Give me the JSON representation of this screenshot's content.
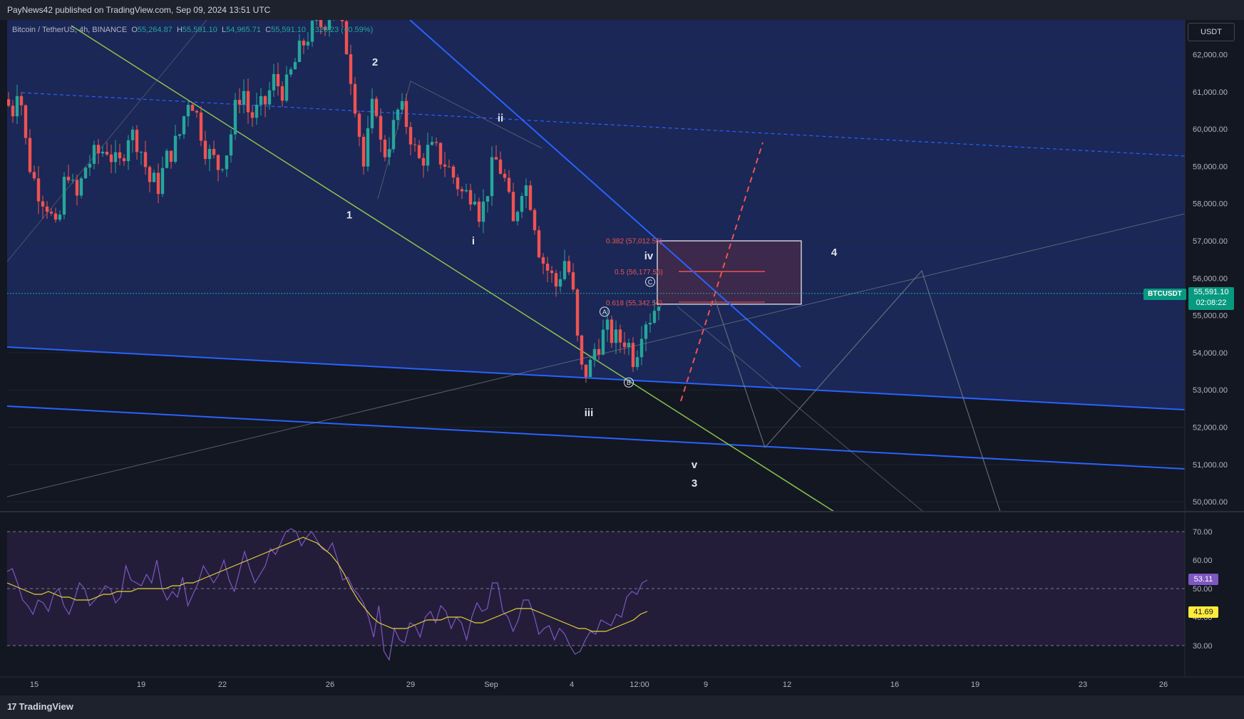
{
  "header": {
    "published": "PayNews42 published on TradingView.com, Sep 09, 2024 13:51 UTC"
  },
  "legend": {
    "symbol": "Bitcoin / TetherUS, 4h, BINANCE",
    "open_label": "O",
    "open": "55,264.87",
    "high_label": "H",
    "high": "55,591.10",
    "low_label": "L",
    "low": "54,965.71",
    "close_label": "C",
    "close": "55,591.10",
    "change": "+326.23 (+0.59%)"
  },
  "currency_button": "USDT",
  "symbol_tag": "BTCUSDT",
  "price_tag": {
    "price": "55,591.10",
    "countdown": "02:08:22"
  },
  "rsi_tags": {
    "rsi": "53.11",
    "ma": "41.69"
  },
  "footer": {
    "brand": "TradingView"
  },
  "colors": {
    "background": "#131722",
    "channel_fill": "#1a2757",
    "bull": "#26a69a",
    "bear": "#ef5350",
    "trendline": "#2962ff",
    "wedge": "#8bc34a",
    "rsi": "#7e57c2",
    "rsi_ma": "#e6d135",
    "rsi_bg": "#231d3a",
    "box_fill": "#3e2a4c"
  },
  "chart_data": [
    {
      "type": "candlestick",
      "title": "Bitcoin / TetherUS, 4h, BINANCE",
      "y_axis_ticks": [
        "62,000.00",
        "61,000.00",
        "60,000.00",
        "59,000.00",
        "58,000.00",
        "57,000.00",
        "56,000.00",
        "55,000.00",
        "54,000.00",
        "53,000.00",
        "52,000.00",
        "51,000.00",
        "50,000.00"
      ],
      "x_axis_ticks": [
        "15",
        "19",
        "22",
        "26",
        "29",
        "Sep",
        "4",
        "12:00",
        "9",
        "12",
        "16",
        "19",
        "23",
        "26"
      ],
      "ylim": [
        49800,
        62600
      ],
      "close_path": [
        [
          0,
          60800
        ],
        [
          3,
          60300
        ],
        [
          8,
          61400
        ],
        [
          14,
          59300
        ],
        [
          20,
          58500
        ],
        [
          28,
          58000
        ],
        [
          35,
          57100
        ],
        [
          42,
          59100
        ],
        [
          48,
          58000
        ],
        [
          55,
          59000
        ],
        [
          62,
          59300
        ],
        [
          70,
          59500
        ],
        [
          78,
          58900
        ],
        [
          85,
          59900
        ],
        [
          92,
          59700
        ],
        [
          100,
          58600
        ],
        [
          106,
          58500
        ],
        [
          113,
          59300
        ],
        [
          120,
          59700
        ],
        [
          128,
          61000
        ],
        [
          135,
          60100
        ],
        [
          140,
          59400
        ],
        [
          148,
          59000
        ],
        [
          155,
          59500
        ],
        [
          160,
          60500
        ],
        [
          165,
          61200
        ],
        [
          170,
          60300
        ],
        [
          180,
          60600
        ],
        [
          187,
          61300
        ],
        [
          195,
          61000
        ],
        [
          200,
          61600
        ],
        [
          210,
          62500
        ],
        [
          220,
          62800
        ],
        [
          230,
          63300
        ],
        [
          238,
          62200
        ],
        [
          245,
          60500
        ],
        [
          250,
          59000
        ],
        [
          258,
          61000
        ],
        [
          263,
          59200
        ],
        [
          270,
          59900
        ],
        [
          275,
          60600
        ],
        [
          282,
          60000
        ],
        [
          288,
          59100
        ],
        [
          295,
          59400
        ],
        [
          300,
          59400
        ],
        [
          307,
          59100
        ],
        [
          315,
          58600
        ],
        [
          320,
          58200
        ],
        [
          328,
          58400
        ],
        [
          332,
          57600
        ],
        [
          338,
          58600
        ],
        [
          342,
          59200
        ],
        [
          348,
          58800
        ],
        [
          355,
          57400
        ],
        [
          362,
          58700
        ],
        [
          368,
          58000
        ],
        [
          374,
          56600
        ],
        [
          378,
          56300
        ],
        [
          385,
          55800
        ],
        [
          392,
          56600
        ],
        [
          397,
          55500
        ],
        [
          402,
          53500
        ],
        [
          408,
          53500
        ],
        [
          412,
          54100
        ],
        [
          420,
          54600
        ],
        [
          428,
          54300
        ],
        [
          434,
          54400
        ],
        [
          440,
          53800
        ],
        [
          446,
          54900
        ],
        [
          452,
          55000
        ],
        [
          458,
          55591
        ]
      ],
      "labels": [
        {
          "text": "1",
          "x": 240,
          "y": 57600
        },
        {
          "text": "2",
          "x": 258,
          "y": 61700
        },
        {
          "text": "i",
          "x": 327,
          "y": 56900
        },
        {
          "text": "ii",
          "x": 346,
          "y": 60200
        },
        {
          "text": "iii",
          "x": 408,
          "y": 52300
        },
        {
          "text": "iv",
          "x": 450,
          "y": 56500
        },
        {
          "text": "v",
          "x": 482,
          "y": 50900
        },
        {
          "text": "3",
          "x": 482,
          "y": 50400
        },
        {
          "text": "4",
          "x": 580,
          "y": 56600
        }
      ],
      "wave_markers": [
        {
          "text": "A",
          "x": 419,
          "y": 55100
        },
        {
          "text": "B",
          "x": 436,
          "y": 53200
        },
        {
          "text": "C",
          "x": 451,
          "y": 55900
        }
      ],
      "fibonacci": [
        {
          "text": "0.382 (57,012.56)",
          "y": 57012.56
        },
        {
          "text": "0.5 (56,177.56)",
          "y": 56177.56
        },
        {
          "text": "0.618 (55,342.56)",
          "y": 55342.56
        }
      ],
      "target_box": {
        "y_top": 57000,
        "y_bottom": 55300
      }
    },
    {
      "type": "line",
      "title": "RSI",
      "y_axis_ticks": [
        "70.00",
        "60.00",
        "50.00",
        "40.00",
        "30.00"
      ],
      "ylim": [
        24,
        80
      ],
      "levels": [
        70,
        50,
        30
      ],
      "series": [
        {
          "values": [
            56,
            57,
            52,
            46,
            44,
            41,
            46,
            45,
            42,
            48,
            50,
            44,
            41,
            46,
            52,
            50,
            44,
            46,
            48,
            51,
            50,
            45,
            47,
            58,
            53,
            52,
            51,
            55,
            52,
            60,
            50,
            46,
            49,
            47,
            54,
            44,
            48,
            52,
            58,
            55,
            52,
            55,
            60,
            53,
            49,
            56,
            63,
            57,
            52,
            55,
            58,
            64,
            62,
            66,
            70,
            71,
            70,
            65,
            68,
            70,
            67,
            64,
            63,
            66,
            60,
            53,
            54,
            50,
            48,
            45,
            40,
            33,
            44,
            28,
            25,
            36,
            32,
            31,
            38,
            37,
            33,
            40,
            42,
            38,
            44,
            42,
            36,
            40,
            38,
            32,
            40,
            45,
            42,
            43,
            52,
            52,
            42,
            40,
            35,
            39,
            46,
            46,
            41,
            34,
            36,
            37,
            32,
            36,
            34,
            30,
            27,
            28,
            32,
            35,
            34,
            39,
            38,
            37,
            41,
            40,
            47,
            49,
            48,
            52,
            53
          ]
        },
        {
          "values": [
            52,
            51,
            50,
            49,
            48,
            48,
            49,
            48,
            47,
            47,
            46,
            46,
            46,
            47,
            48,
            48,
            49,
            49,
            49,
            50,
            50,
            50,
            50,
            50,
            51,
            51,
            52,
            52,
            53,
            54,
            55,
            56,
            57,
            58,
            59,
            60,
            61,
            62,
            63,
            64,
            65,
            66,
            67,
            68,
            67,
            66,
            64,
            62,
            59,
            55,
            50,
            46,
            43,
            40,
            38,
            37,
            36,
            36,
            36,
            37,
            38,
            39,
            39,
            39,
            40,
            40,
            40,
            39,
            38,
            38,
            39,
            40,
            41,
            42,
            43,
            43,
            43,
            42,
            41,
            40,
            39,
            38,
            37,
            36,
            36,
            35,
            35,
            35,
            36,
            37,
            38,
            39,
            41,
            42
          ]
        }
      ]
    }
  ]
}
